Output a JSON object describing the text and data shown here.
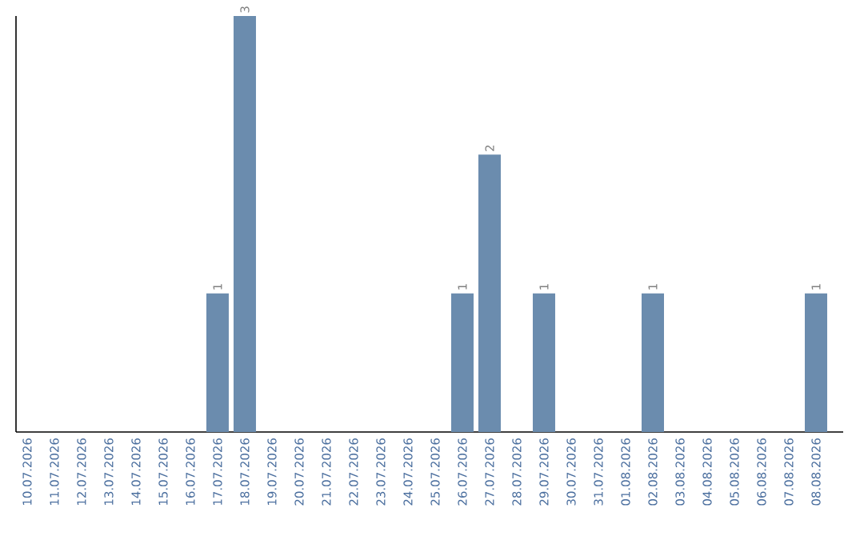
{
  "chart_data": {
    "type": "bar",
    "categories": [
      "10.07.2026",
      "11.07.2026",
      "12.07.2026",
      "13.07.2026",
      "14.07.2026",
      "15.07.2026",
      "16.07.2026",
      "17.07.2026",
      "18.07.2026",
      "19.07.2026",
      "20.07.2026",
      "21.07.2026",
      "22.07.2026",
      "23.07.2026",
      "24.07.2026",
      "25.07.2026",
      "26.07.2026",
      "27.07.2026",
      "28.07.2026",
      "29.07.2026",
      "30.07.2026",
      "31.07.2026",
      "01.08.2026",
      "02.08.2026",
      "03.08.2026",
      "04.08.2026",
      "05.08.2026",
      "06.08.2026",
      "07.08.2026",
      "08.08.2026"
    ],
    "values": [
      0,
      0,
      0,
      0,
      0,
      0,
      0,
      1,
      3,
      0,
      0,
      0,
      0,
      0,
      0,
      0,
      1,
      2,
      0,
      1,
      0,
      0,
      0,
      1,
      0,
      0,
      0,
      0,
      0,
      1
    ],
    "value_labels": [
      null,
      null,
      null,
      null,
      null,
      null,
      null,
      "1",
      "3",
      null,
      null,
      null,
      null,
      null,
      null,
      null,
      "1",
      "2",
      null,
      "1",
      null,
      null,
      null,
      "1",
      null,
      null,
      null,
      null,
      null,
      "1"
    ],
    "color": "#6b8cae"
  }
}
